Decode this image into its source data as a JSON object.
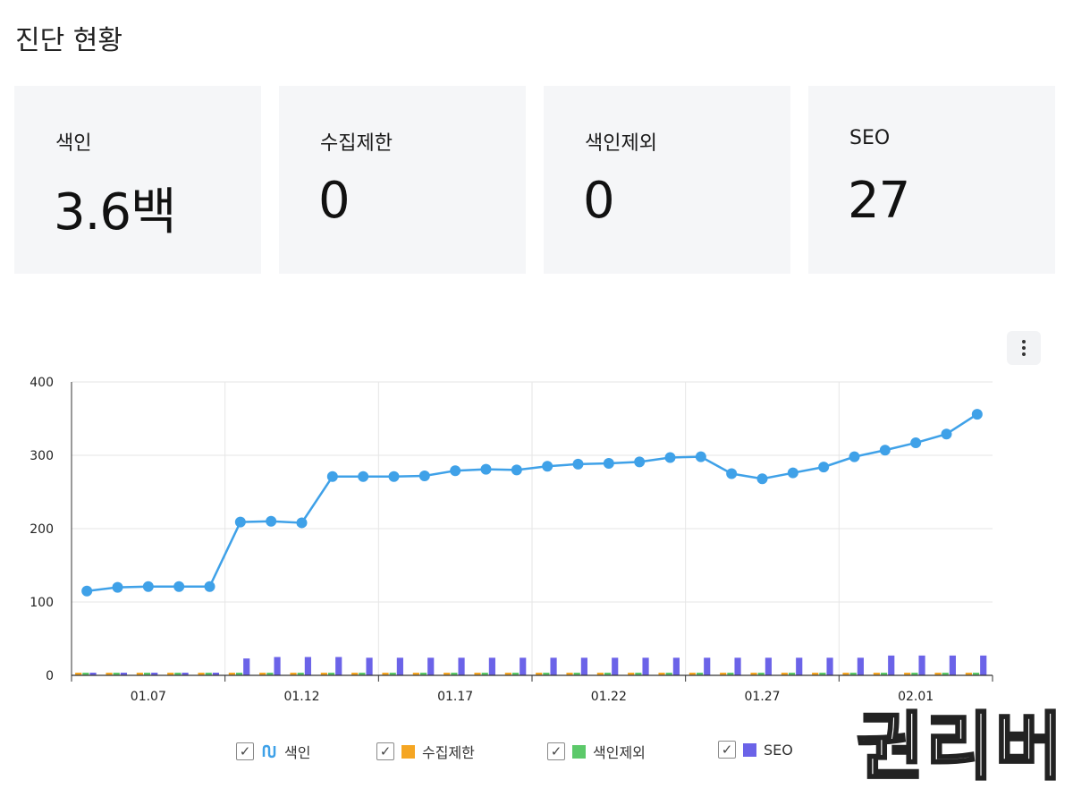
{
  "page_title": "진단 현황",
  "cards": [
    {
      "label": "색인",
      "value": "3.6백"
    },
    {
      "label": "수집제한",
      "value": "0"
    },
    {
      "label": "색인제외",
      "value": "0"
    },
    {
      "label": "SEO",
      "value": "27"
    }
  ],
  "menu_icon": "more-vertical-icon",
  "chart_data": {
    "type": "line+bar",
    "title": "",
    "xlabel": "",
    "ylabel": "",
    "ylim": [
      0,
      400
    ],
    "yticks": [
      0,
      100,
      200,
      300,
      400
    ],
    "x_tick_labels": [
      "01.07",
      "01.12",
      "01.17",
      "01.22",
      "01.27",
      "02.01"
    ],
    "x": [
      "01.05",
      "01.06",
      "01.07",
      "01.08",
      "01.09",
      "01.10",
      "01.11",
      "01.12",
      "01.13",
      "01.14",
      "01.15",
      "01.16",
      "01.17",
      "01.18",
      "01.19",
      "01.20",
      "01.21",
      "01.22",
      "01.23",
      "01.24",
      "01.25",
      "01.26",
      "01.27",
      "01.28",
      "01.29",
      "01.30",
      "01.31",
      "02.01",
      "02.02",
      "02.03"
    ],
    "grid": true,
    "legend_position": "bottom",
    "series": [
      {
        "name": "색인",
        "type": "line",
        "color": "#3fa1e8",
        "values": [
          115,
          120,
          121,
          121,
          121,
          209,
          210,
          208,
          271,
          271,
          271,
          272,
          279,
          281,
          280,
          285,
          288,
          289,
          291,
          297,
          298,
          275,
          268,
          276,
          284,
          298,
          307,
          317,
          329,
          356
        ]
      },
      {
        "name": "수집제한",
        "type": "bar",
        "color": "#f5a623",
        "values": [
          0,
          0,
          0,
          0,
          0,
          0,
          0,
          0,
          0,
          0,
          0,
          0,
          0,
          0,
          0,
          0,
          0,
          0,
          0,
          0,
          0,
          0,
          0,
          0,
          0,
          0,
          0,
          0,
          0,
          0
        ]
      },
      {
        "name": "색인제외",
        "type": "bar",
        "color": "#5cc96a",
        "values": [
          0,
          0,
          0,
          0,
          0,
          0,
          0,
          0,
          0,
          0,
          0,
          0,
          0,
          0,
          0,
          0,
          0,
          0,
          0,
          0,
          0,
          0,
          0,
          0,
          0,
          0,
          0,
          0,
          0,
          0
        ]
      },
      {
        "name": "SEO",
        "type": "bar",
        "color": "#6b63e8",
        "values": [
          1,
          1,
          1,
          1,
          1,
          23,
          25,
          25,
          25,
          24,
          24,
          24,
          24,
          24,
          24,
          24,
          24,
          24,
          24,
          24,
          24,
          24,
          24,
          24,
          24,
          24,
          27,
          27,
          27,
          27
        ]
      }
    ]
  },
  "legend": [
    {
      "label": "색인",
      "color": "#3fa1e8",
      "icon": "line-series-icon"
    },
    {
      "label": "수집제한",
      "color": "#f5a623",
      "icon": "square-icon"
    },
    {
      "label": "색인제외",
      "color": "#5cc96a",
      "icon": "square-icon"
    },
    {
      "label": "SEO",
      "color": "#6b63e8",
      "icon": "square-icon"
    }
  ],
  "watermark": "권리버"
}
